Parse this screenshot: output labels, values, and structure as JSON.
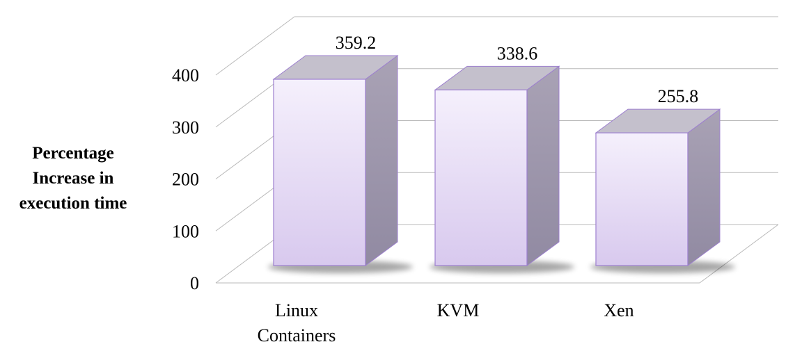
{
  "chart_data": {
    "type": "bar",
    "categories": [
      "Linux\nContainers",
      "KVM",
      "Xen"
    ],
    "values": [
      359.2,
      338.6,
      255.8
    ],
    "data_labels": [
      "359.2",
      "338.6",
      "255.8"
    ],
    "ylabel_lines": [
      "Percentage",
      "Increase in",
      "execution time"
    ],
    "xlabel": "",
    "ylim": [
      0,
      400
    ],
    "yticks": [
      0,
      100,
      200,
      300,
      400
    ],
    "grid": true,
    "three_d": true,
    "bar_colors": {
      "front_top": "#f5f0fc",
      "front_bottom": "#d8c9ee",
      "side_top": "#a9a2b5",
      "side_bottom": "#918aa2",
      "cap": "#c4c0cc",
      "edge": "#9d7fcf"
    }
  }
}
